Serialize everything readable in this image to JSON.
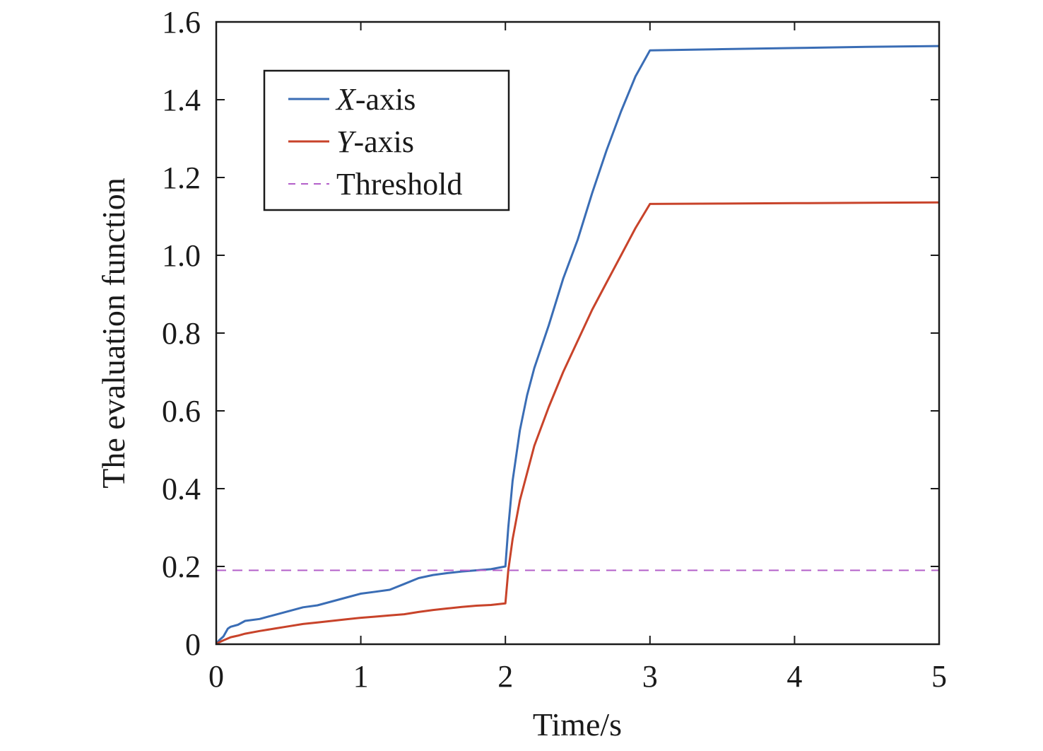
{
  "chart_data": {
    "type": "line",
    "xlabel": "Time/s",
    "ylabel": "The evaluation function",
    "xlim": [
      0,
      5
    ],
    "ylim": [
      0,
      1.6
    ],
    "x_ticks": [
      0,
      1,
      2,
      3,
      4,
      5
    ],
    "x_tick_labels": [
      "0",
      "1",
      "2",
      "3",
      "4",
      "5"
    ],
    "y_ticks": [
      0,
      0.2,
      0.4,
      0.6,
      0.8,
      1.0,
      1.2,
      1.4,
      1.6
    ],
    "y_tick_labels": [
      "0",
      "0.2",
      "0.4",
      "0.6",
      "0.8",
      "1.0",
      "1.2",
      "1.4",
      "1.6"
    ],
    "grid": false,
    "legend_position": "top-left",
    "series": [
      {
        "name": "X-axis",
        "name_italic": "X",
        "name_rest": "-axis",
        "color": "#3a6db5",
        "style": "solid",
        "x": [
          0,
          0.02,
          0.05,
          0.08,
          0.1,
          0.15,
          0.2,
          0.3,
          0.4,
          0.5,
          0.6,
          0.7,
          0.8,
          0.9,
          1.0,
          1.1,
          1.2,
          1.3,
          1.4,
          1.5,
          1.6,
          1.7,
          1.8,
          1.9,
          2.0,
          2.02,
          2.05,
          2.1,
          2.15,
          2.2,
          2.3,
          2.4,
          2.5,
          2.6,
          2.7,
          2.8,
          2.9,
          3.0,
          3.5,
          4.0,
          4.5,
          5.0
        ],
        "y": [
          0,
          0.01,
          0.02,
          0.04,
          0.045,
          0.05,
          0.06,
          0.065,
          0.075,
          0.085,
          0.095,
          0.1,
          0.11,
          0.12,
          0.13,
          0.135,
          0.14,
          0.155,
          0.17,
          0.178,
          0.183,
          0.187,
          0.19,
          0.193,
          0.2,
          0.3,
          0.42,
          0.55,
          0.64,
          0.71,
          0.82,
          0.94,
          1.04,
          1.16,
          1.27,
          1.37,
          1.46,
          1.527,
          1.53,
          1.533,
          1.536,
          1.538
        ]
      },
      {
        "name": "Y-axis",
        "name_italic": "Y",
        "name_rest": "-axis",
        "color": "#c8432a",
        "style": "solid",
        "x": [
          0,
          0.02,
          0.05,
          0.1,
          0.15,
          0.2,
          0.3,
          0.4,
          0.5,
          0.6,
          0.7,
          0.8,
          0.9,
          1.0,
          1.1,
          1.2,
          1.3,
          1.4,
          1.5,
          1.6,
          1.7,
          1.8,
          1.9,
          2.0,
          2.02,
          2.05,
          2.1,
          2.15,
          2.2,
          2.3,
          2.4,
          2.5,
          2.6,
          2.7,
          2.8,
          2.9,
          3.0,
          3.5,
          4.0,
          4.5,
          5.0
        ],
        "y": [
          0,
          0.005,
          0.01,
          0.018,
          0.022,
          0.027,
          0.034,
          0.04,
          0.046,
          0.052,
          0.056,
          0.06,
          0.064,
          0.068,
          0.071,
          0.074,
          0.077,
          0.083,
          0.088,
          0.092,
          0.096,
          0.099,
          0.101,
          0.105,
          0.19,
          0.27,
          0.37,
          0.44,
          0.51,
          0.61,
          0.7,
          0.78,
          0.86,
          0.93,
          1.0,
          1.07,
          1.132,
          1.133,
          1.134,
          1.135,
          1.136
        ]
      },
      {
        "name": "Threshold",
        "color": "#b35fc9",
        "style": "dashed",
        "x": [
          0,
          5
        ],
        "y": [
          0.19,
          0.19
        ]
      }
    ]
  }
}
